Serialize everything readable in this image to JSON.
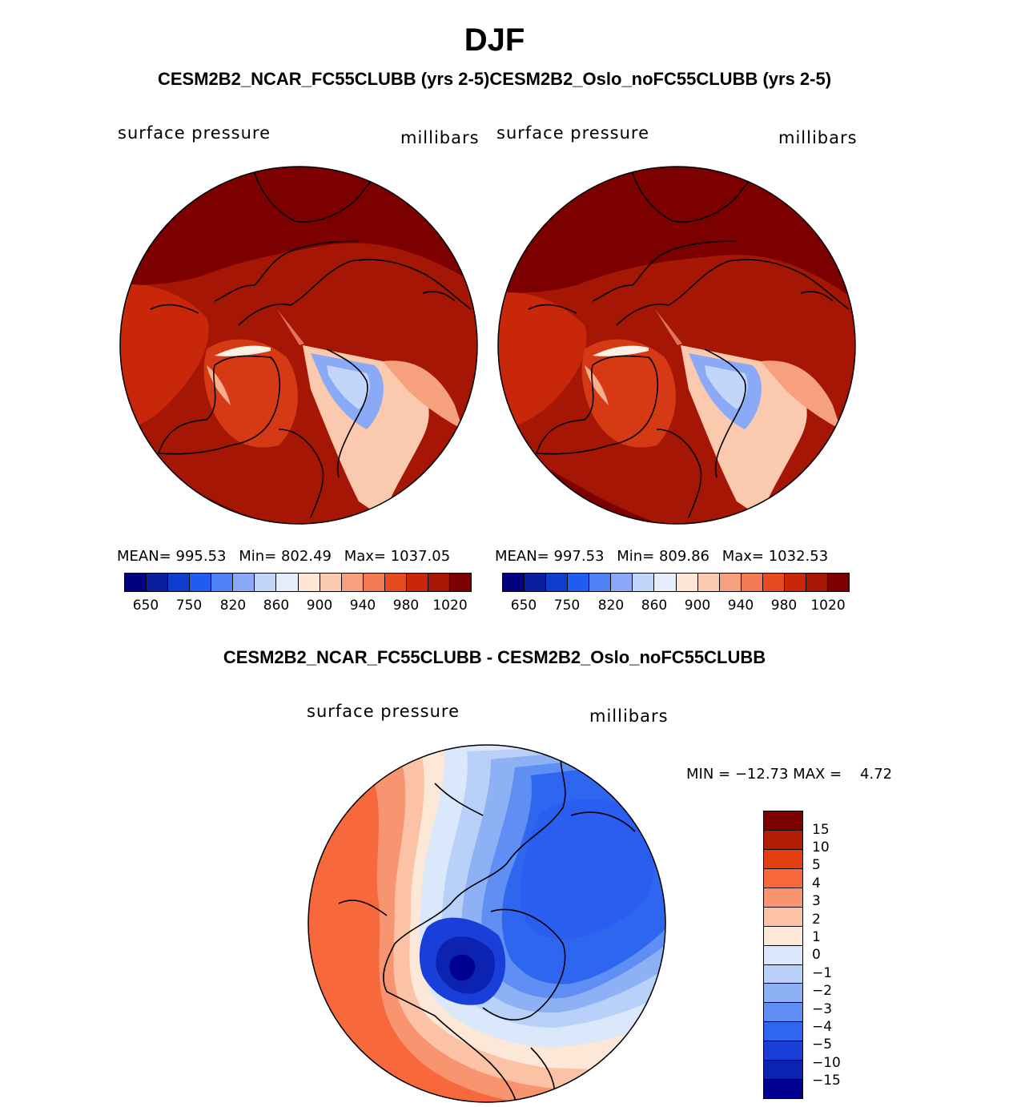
{
  "title": "DJF",
  "subtitle": "CESM2B2_NCAR_FC55CLUBB (yrs 2-5)CESM2B2_Oslo_noFC55CLUBB (yrs 2-5)",
  "panels": [
    {
      "variable": "surface pressure",
      "units": "millibars",
      "stats": {
        "mean_label": "MEAN=",
        "mean": "995.53",
        "min_label": "Min=",
        "min": "802.49",
        "max_label": "Max=",
        "max": "1037.05"
      }
    },
    {
      "variable": "surface pressure",
      "units": "millibars",
      "stats": {
        "mean_label": "MEAN=",
        "mean": "997.53",
        "min_label": "Min=",
        "min": "809.86",
        "max_label": "Max=",
        "max": "1032.53"
      }
    }
  ],
  "abs_colorbar": {
    "colors": [
      "#000080",
      "#0a1fa0",
      "#0f3dcc",
      "#1f5cf0",
      "#5182f5",
      "#8aaaf7",
      "#c2d5fb",
      "#e6eefc",
      "#fde6d6",
      "#fbc9ae",
      "#f6a07e",
      "#f27a52",
      "#e64a1e",
      "#c8270a",
      "#a51604",
      "#7d0000"
    ],
    "labels": [
      "650",
      "750",
      "820",
      "860",
      "900",
      "940",
      "980",
      "1020"
    ]
  },
  "difference": {
    "title": "CESM2B2_NCAR_FC55CLUBB - CESM2B2_Oslo_noFC55CLUBB",
    "variable": "surface pressure",
    "units": "millibars",
    "minmax": "MIN = −12.73 MAX =    4.72",
    "colorbar": {
      "colors_top_to_bottom": [
        "#7d0000",
        "#b01c04",
        "#e43d10",
        "#f7683d",
        "#f8946f",
        "#fbc2a5",
        "#fde8d8",
        "#dbe8fb",
        "#b9d0f9",
        "#8eb1f6",
        "#5f8ef4",
        "#2f66f0",
        "#1a3fd8",
        "#0c22b0",
        "#000090"
      ],
      "labels": [
        "15",
        "10",
        "5",
        "4",
        "3",
        "2",
        "1",
        "0",
        "−1",
        "−2",
        "−3",
        "−4",
        "−5",
        "−10",
        "−15"
      ]
    }
  },
  "chart_data": {
    "type": "heatmap",
    "season": "DJF",
    "projection": "north polar stereographic",
    "fields": [
      {
        "name": "CESM2B2_NCAR_FC55CLUBB (yrs 2-5)",
        "variable": "surface pressure",
        "units": "millibars",
        "mean": 995.53,
        "min": 802.49,
        "max": 1037.05,
        "contour_levels": [
          650,
          700,
          750,
          800,
          820,
          840,
          860,
          880,
          900,
          920,
          940,
          960,
          980,
          1000,
          1020
        ]
      },
      {
        "name": "CESM2B2_Oslo_noFC55CLUBB (yrs 2-5)",
        "variable": "surface pressure",
        "units": "millibars",
        "mean": 997.53,
        "min": 809.86,
        "max": 1032.53,
        "contour_levels": [
          650,
          700,
          750,
          800,
          820,
          840,
          860,
          880,
          900,
          920,
          940,
          960,
          980,
          1000,
          1020
        ]
      },
      {
        "name": "CESM2B2_NCAR_FC55CLUBB - CESM2B2_Oslo_noFC55CLUBB",
        "variable": "surface pressure",
        "units": "millibars",
        "min": -12.73,
        "max": 4.72,
        "contour_levels": [
          -15,
          -10,
          -5,
          -4,
          -3,
          -2,
          -1,
          0,
          1,
          2,
          3,
          4,
          5,
          10,
          15
        ]
      }
    ]
  }
}
